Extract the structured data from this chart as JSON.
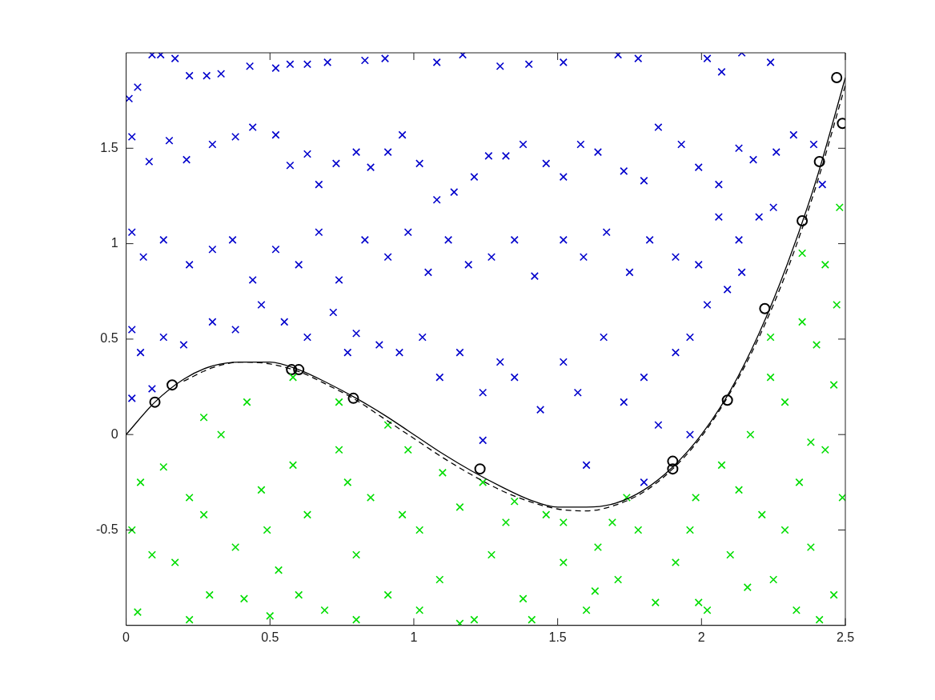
{
  "chart_data": {
    "type": "scatter",
    "xlim": [
      0,
      2.5
    ],
    "ylim": [
      -1,
      2
    ],
    "xticks": [
      0,
      0.5,
      1,
      1.5,
      2,
      2.5
    ],
    "yticks": [
      -0.5,
      0,
      0.5,
      1,
      1.5
    ],
    "grid": false,
    "legend": false,
    "series": [
      {
        "color": "#0000cc",
        "marker": "cross",
        "x": [
          0.01,
          0.04,
          0.09,
          0.12,
          0.17,
          0.22,
          0.28,
          0.33,
          0.43,
          0.52,
          0.57,
          0.63,
          0.7,
          0.83,
          0.9,
          1.08,
          1.17,
          1.3,
          1.4,
          1.52,
          1.71,
          1.78,
          2.02,
          2.07,
          2.14,
          2.24,
          0.02,
          0.08,
          0.15,
          0.21,
          0.3,
          0.38,
          0.44,
          0.52,
          0.57,
          0.63,
          0.67,
          0.73,
          0.8,
          0.85,
          0.91,
          0.96,
          1.02,
          1.08,
          1.14,
          1.21,
          1.26,
          1.32,
          1.38,
          1.46,
          1.52,
          1.58,
          1.64,
          1.73,
          1.8,
          1.85,
          1.93,
          1.99,
          2.06,
          2.13,
          2.18,
          2.26,
          2.32,
          2.39,
          2.42,
          0.02,
          0.06,
          0.13,
          0.22,
          0.3,
          0.37,
          0.44,
          0.52,
          0.6,
          0.67,
          0.74,
          0.83,
          0.91,
          0.98,
          1.05,
          1.12,
          1.19,
          1.27,
          1.35,
          1.42,
          1.52,
          1.59,
          1.67,
          1.75,
          1.82,
          1.91,
          1.99,
          2.06,
          2.13,
          2.2,
          2.25,
          0.02,
          0.05,
          0.13,
          0.2,
          0.3,
          0.38,
          0.47,
          0.55,
          0.63,
          0.72,
          0.8,
          0.88,
          0.95,
          1.03,
          1.09,
          1.16,
          1.24,
          1.3,
          1.35,
          1.44,
          1.52,
          1.57,
          1.66,
          1.73,
          1.8,
          1.85,
          1.91,
          1.96,
          2.02,
          2.09,
          2.14,
          0.02,
          0.09,
          0.77,
          1.24,
          1.6,
          1.8,
          1.96
        ],
        "values": [
          1.76,
          1.82,
          1.99,
          1.99,
          1.97,
          1.88,
          1.88,
          1.89,
          1.93,
          1.92,
          1.94,
          1.94,
          1.95,
          1.96,
          1.97,
          1.95,
          1.99,
          1.93,
          1.94,
          1.95,
          1.99,
          1.97,
          1.97,
          1.9,
          2.0,
          1.95,
          1.56,
          1.43,
          1.54,
          1.44,
          1.52,
          1.56,
          1.61,
          1.57,
          1.41,
          1.47,
          1.31,
          1.42,
          1.48,
          1.4,
          1.48,
          1.57,
          1.42,
          1.23,
          1.27,
          1.35,
          1.46,
          1.46,
          1.52,
          1.42,
          1.35,
          1.52,
          1.48,
          1.38,
          1.33,
          1.61,
          1.52,
          1.4,
          1.31,
          1.5,
          1.44,
          1.48,
          1.57,
          1.52,
          1.31,
          1.06,
          0.93,
          1.02,
          0.89,
          0.97,
          1.02,
          0.81,
          0.97,
          0.89,
          1.06,
          0.81,
          1.02,
          0.93,
          1.06,
          0.85,
          1.02,
          0.89,
          0.93,
          1.02,
          0.83,
          1.02,
          0.93,
          1.06,
          0.85,
          1.02,
          0.93,
          0.89,
          1.14,
          1.02,
          1.14,
          1.19,
          0.55,
          0.43,
          0.51,
          0.47,
          0.59,
          0.55,
          0.68,
          0.59,
          0.51,
          0.64,
          0.53,
          0.47,
          0.43,
          0.51,
          0.3,
          0.43,
          0.22,
          0.38,
          0.3,
          0.13,
          0.38,
          0.22,
          0.51,
          0.17,
          0.3,
          0.05,
          0.43,
          0.51,
          0.68,
          0.76,
          0.85,
          0.19,
          0.24,
          0.43,
          -0.03,
          -0.16,
          -0.25,
          0.0
        ]
      },
      {
        "color": "#00dd00",
        "marker": "cross",
        "x": [
          0.02,
          0.05,
          0.09,
          0.13,
          0.17,
          0.22,
          0.29,
          0.33,
          0.38,
          0.42,
          0.47,
          0.53,
          0.58,
          0.63,
          0.69,
          0.74,
          0.8,
          0.85,
          0.91,
          0.98,
          1.02,
          1.09,
          1.16,
          1.21,
          1.27,
          1.32,
          1.38,
          1.46,
          1.52,
          1.6,
          1.64,
          1.71,
          1.78,
          1.84,
          1.91,
          1.98,
          2.02,
          2.07,
          2.1,
          2.17,
          2.21,
          2.25,
          2.29,
          2.34,
          2.38,
          2.4,
          2.43,
          2.46,
          2.47,
          2.49,
          2.48,
          2.43,
          2.35,
          2.24,
          0.27,
          0.58,
          0.74,
          0.91,
          1.1,
          1.35,
          1.69,
          0.04,
          0.22,
          0.41,
          0.5,
          0.6,
          0.8,
          1.02,
          1.16,
          1.41,
          1.63,
          1.99,
          2.16,
          2.33,
          2.41,
          0.27,
          0.49,
          0.77,
          0.96,
          1.24,
          1.52,
          1.74,
          1.96,
          2.13,
          2.29,
          2.38,
          2.24,
          2.35,
          2.46
        ],
        "values": [
          -0.5,
          -0.25,
          -0.63,
          -0.17,
          -0.67,
          -0.33,
          -0.84,
          0.0,
          -0.59,
          0.17,
          -0.29,
          -0.71,
          -0.16,
          -0.42,
          -0.92,
          -0.08,
          -0.63,
          -0.33,
          -0.84,
          -0.08,
          -0.5,
          -0.76,
          -0.38,
          -0.97,
          -0.63,
          -0.46,
          -0.86,
          -0.42,
          -0.67,
          -0.92,
          -0.59,
          -0.76,
          -0.5,
          -0.88,
          -0.67,
          -0.33,
          -0.92,
          -0.16,
          -0.63,
          0.0,
          -0.42,
          -0.76,
          0.17,
          -0.25,
          -0.59,
          0.47,
          -0.08,
          -0.84,
          0.68,
          -0.33,
          1.19,
          0.89,
          0.95,
          0.51,
          0.09,
          0.3,
          0.17,
          0.05,
          -0.2,
          -0.35,
          -0.46,
          -0.93,
          -0.97,
          -0.86,
          -0.95,
          -0.84,
          -0.97,
          -0.92,
          -0.99,
          -0.97,
          -0.82,
          -0.88,
          -0.8,
          -0.92,
          -0.97,
          -0.42,
          -0.5,
          -0.25,
          -0.42,
          -0.25,
          -0.46,
          -0.33,
          -0.5,
          -0.29,
          -0.5,
          -0.04,
          0.3,
          0.59,
          0.26
        ]
      },
      {
        "color": "#000000",
        "marker": "circle",
        "x": [
          0.1,
          0.16,
          0.575,
          0.6,
          0.79,
          1.23,
          1.9,
          1.9,
          2.09,
          2.22,
          2.35,
          2.41,
          2.47,
          2.49
        ],
        "values": [
          0.17,
          0.26,
          0.34,
          0.34,
          0.19,
          -0.18,
          -0.14,
          -0.18,
          0.18,
          0.66,
          1.12,
          1.43,
          1.87,
          1.63
        ]
      },
      {
        "type": "line",
        "color": "#000000",
        "marker": "none",
        "line_style": "solid",
        "x": [
          0,
          0.1,
          0.2,
          0.3,
          0.4,
          0.5,
          0.6,
          0.7,
          0.8,
          0.9,
          1,
          1.1,
          1.2,
          1.3,
          1.4,
          1.5,
          1.6,
          1.7,
          1.8,
          1.9,
          2,
          2.1,
          2.2,
          2.3,
          2.4,
          2.5
        ],
        "values": [
          0,
          0.17,
          0.29,
          0.36,
          0.38,
          0.38,
          0.34,
          0.27,
          0.19,
          0.1,
          0,
          -0.1,
          -0.19,
          -0.27,
          -0.34,
          -0.38,
          -0.38,
          -0.36,
          -0.29,
          -0.17,
          0,
          0.23,
          0.53,
          0.9,
          1.34,
          1.87
        ]
      },
      {
        "type": "line",
        "color": "#000000",
        "marker": "none",
        "line_style": "dashed",
        "x": [
          0.2,
          0.3,
          0.4,
          0.5,
          0.6,
          0.7,
          0.8,
          0.9,
          1,
          1.1,
          1.2,
          1.3,
          1.4,
          1.5,
          1.6,
          1.7,
          1.8,
          1.9,
          2,
          2.1,
          2.2,
          2.3,
          2.4,
          2.5
        ],
        "values": [
          0.28,
          0.35,
          0.38,
          0.37,
          0.33,
          0.26,
          0.18,
          0.08,
          -0.02,
          -0.12,
          -0.21,
          -0.29,
          -0.35,
          -0.39,
          -0.4,
          -0.37,
          -0.3,
          -0.18,
          -0.01,
          0.22,
          0.51,
          0.87,
          1.31,
          1.83
        ]
      }
    ]
  }
}
